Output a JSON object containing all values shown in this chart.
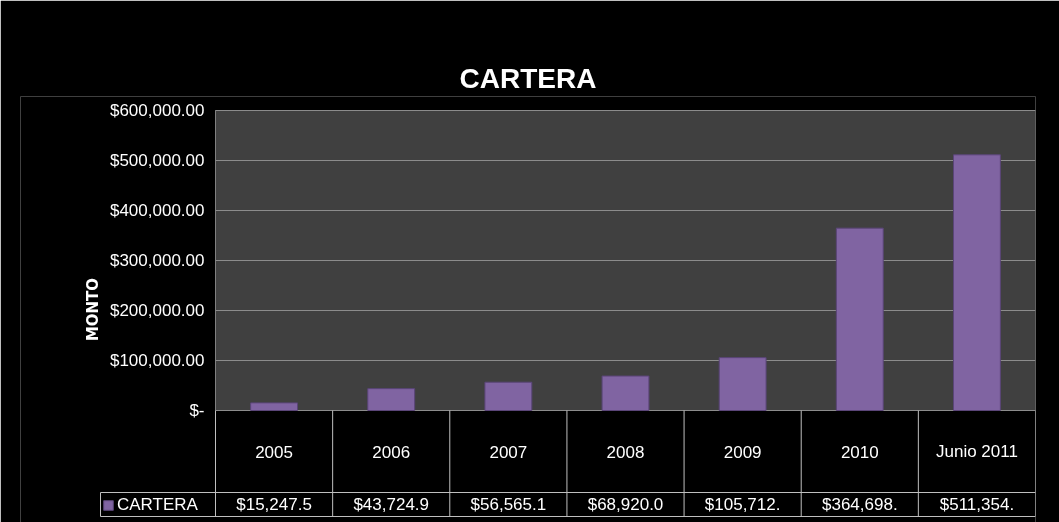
{
  "chart_data": {
    "type": "bar",
    "title": "CARTERA",
    "ylabel": "MONTO",
    "categories": [
      "2005",
      "2006",
      "2007",
      "2008",
      "2009",
      "2010",
      "Junio 2011"
    ],
    "series": [
      {
        "name": "CARTERA",
        "color": "#8064a2",
        "values": [
          15247.5,
          43724.9,
          56565.1,
          68920.0,
          105712,
          364698,
          511354
        ],
        "value_labels": [
          "$15,247.5",
          "$43,724.9",
          "$56,565.1",
          "$68,920.0",
          "$105,712.",
          "$364,698.",
          "$511,354."
        ]
      }
    ],
    "ylim": [
      0,
      600000
    ],
    "yticks": [
      {
        "value": 0,
        "label": "$-"
      },
      {
        "value": 100000,
        "label": "$100,000.00"
      },
      {
        "value": 200000,
        "label": "$200,000.00"
      },
      {
        "value": 300000,
        "label": "$300,000.00"
      },
      {
        "value": 400000,
        "label": "$400,000.00"
      },
      {
        "value": 500000,
        "label": "$500,000.00"
      },
      {
        "value": 600000,
        "label": "$600,000.00"
      }
    ],
    "grid": "y",
    "legend": "bottom"
  }
}
